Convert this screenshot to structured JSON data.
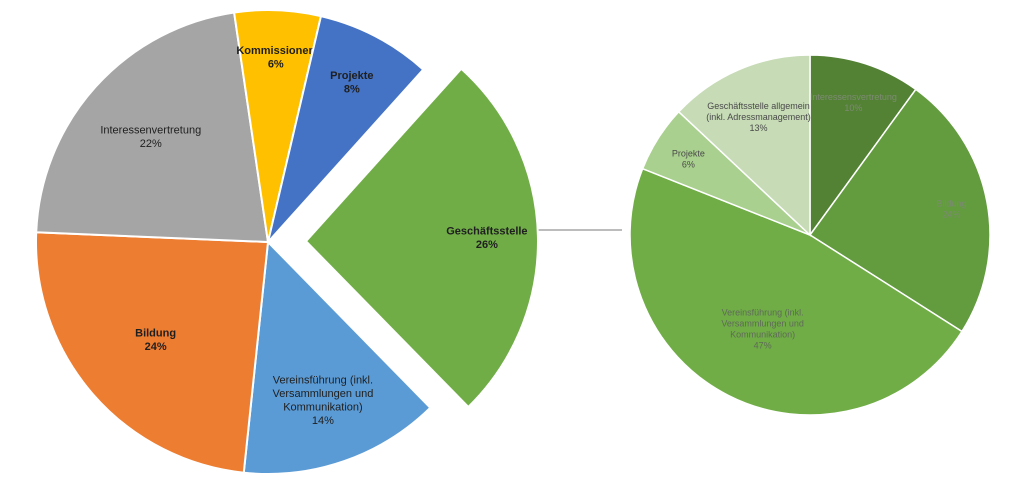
{
  "chart_data": [
    {
      "type": "pie",
      "slices": [
        {
          "label": [
            "Geschäftsstelle"
          ],
          "value": 26,
          "pct": "26%",
          "color": "#70AD47",
          "exploded": true
        },
        {
          "label": [
            "Vereinsführung (inkl.",
            "Versammlungen und",
            "Kommunikation)"
          ],
          "value": 14,
          "pct": "14%",
          "color": "#5B9BD5"
        },
        {
          "label": [
            "Bildung"
          ],
          "value": 24,
          "pct": "24%",
          "color": "#ED7D31"
        },
        {
          "label": [
            "Interessenvertretung"
          ],
          "value": 22,
          "pct": "22%",
          "color": "#A5A5A5"
        },
        {
          "label": [
            "Kommissionen"
          ],
          "value": 6,
          "pct": "6%",
          "color": "#FFC000"
        },
        {
          "label": [
            "Projekte"
          ],
          "value": 8,
          "pct": "8%",
          "color": "#4472C4"
        }
      ]
    },
    {
      "type": "pie",
      "slices": [
        {
          "label": [
            "Interessensvertretung"
          ],
          "value": 10,
          "pct": "10%",
          "color": "#548235",
          "text_color": "#7c8a72"
        },
        {
          "label": [
            "Bildung"
          ],
          "value": 24,
          "pct": "24%",
          "color": "#639B3F",
          "text_color": "#7c8a72"
        },
        {
          "label": [
            "Vereinsführung (inkl.",
            "Versammlungen und",
            "Kommunikation)"
          ],
          "value": 47,
          "pct": "47%",
          "color": "#70AD47",
          "text_color": "#5f6a58"
        },
        {
          "label": [
            "Projekte"
          ],
          "value": 6,
          "pct": "6%",
          "color": "#A9D08E",
          "text_color": "#4a4a4a"
        },
        {
          "label": [
            "Geschäftsstelle allgemein",
            "(inkl. Adressmanagement)"
          ],
          "value": 13,
          "pct": "13%",
          "color": "#C6DBB6",
          "text_color": "#4a4a4a"
        }
      ]
    }
  ]
}
